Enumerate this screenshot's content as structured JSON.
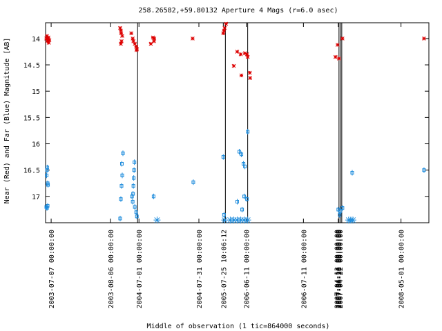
{
  "chart_data": {
    "type": "scatter",
    "title": "258.26582,+59.80132   Aperture 4 Mags (r=6.0 asec)",
    "xlabel": "Middle of observation (1 tic=864000 seconds)",
    "ylabel": "Near (Red) and Far (Blue) Magnitude [AB]",
    "xlim": [
      0,
      55.0
    ],
    "ylim": [
      17.5,
      13.7
    ],
    "y_inverted": true,
    "y_ticks": [
      14,
      14.5,
      15,
      15.5,
      16,
      16.5,
      17
    ],
    "y_tick_labels": [
      "14",
      "14.5",
      "15",
      "15.5",
      "16",
      "16.5",
      "17"
    ],
    "x_ticks": [
      0.8,
      9.3,
      13.4,
      22.0,
      25.5,
      28.8,
      37.0,
      42.0,
      51.0
    ],
    "x_tick_labels": [
      "2003-07-07 00:00:00",
      "2003-08-06 00:00:00",
      "2004-07-01 00:00:00",
      "2004-07-31 00:00:00",
      "2005-07-25 10:06:12",
      "2006-06-11 00:00:00",
      "2006-07-11 00:00:00",
      "2007-04-20 00:00:00",
      "2008-05-01 00:00:00"
    ],
    "x_tick_overlap_labels": [
      "2007-04-13 00:00:00",
      "2007-04-16 00:00:00",
      "2007-04-18 00:00:00",
      "2007-04-22 00:00:00"
    ],
    "vlines": [
      13.2,
      25.8,
      29.0,
      42.1,
      42.3,
      42.5
    ],
    "grid": false,
    "colors": {
      "near": "#dd0000",
      "far": "#1e8cdc",
      "frame": "#000000"
    },
    "series": [
      {
        "name": "Near (Red)",
        "points": [
          [
            0.1,
            14.0
          ],
          [
            0.2,
            13.95
          ],
          [
            0.25,
            14.05
          ],
          [
            0.3,
            14.0
          ],
          [
            0.35,
            14.02
          ],
          [
            0.4,
            13.98
          ],
          [
            0.45,
            14.08
          ],
          [
            0.55,
            14.03
          ],
          [
            10.7,
            13.8
          ],
          [
            10.8,
            13.85
          ],
          [
            10.85,
            13.9
          ],
          [
            11.0,
            13.95
          ],
          [
            10.9,
            14.05
          ],
          [
            10.8,
            14.1
          ],
          [
            12.3,
            13.9
          ],
          [
            12.5,
            14.0
          ],
          [
            12.6,
            14.05
          ],
          [
            12.8,
            14.1
          ],
          [
            13.0,
            14.15
          ],
          [
            13.1,
            14.2
          ],
          [
            13.05,
            14.22
          ],
          [
            15.1,
            14.1
          ],
          [
            15.4,
            13.98
          ],
          [
            15.6,
            14.0
          ],
          [
            15.55,
            14.05
          ],
          [
            21.1,
            14.0
          ],
          [
            25.5,
            13.9
          ],
          [
            25.6,
            13.85
          ],
          [
            25.7,
            13.8
          ],
          [
            25.9,
            13.72
          ],
          [
            27.0,
            14.52
          ],
          [
            27.5,
            14.25
          ],
          [
            28.0,
            14.3
          ],
          [
            28.1,
            14.7
          ],
          [
            28.6,
            14.28
          ],
          [
            28.9,
            14.3
          ],
          [
            29.0,
            14.35
          ],
          [
            29.3,
            14.65
          ],
          [
            29.35,
            14.75
          ],
          [
            41.6,
            14.35
          ],
          [
            41.9,
            14.12
          ],
          [
            42.1,
            14.38
          ],
          [
            42.6,
            14.0
          ],
          [
            54.3,
            14.0
          ]
        ]
      },
      {
        "name": "Far (Blue)",
        "points": [
          [
            0.2,
            16.5
          ],
          [
            0.25,
            16.45
          ],
          [
            0.3,
            16.75
          ],
          [
            0.35,
            16.78
          ],
          [
            0.15,
            16.6
          ],
          [
            0.1,
            17.2
          ],
          [
            0.2,
            17.22
          ],
          [
            0.3,
            17.18
          ],
          [
            10.7,
            17.42
          ],
          [
            10.8,
            17.05
          ],
          [
            10.9,
            16.8
          ],
          [
            11.0,
            16.6
          ],
          [
            10.95,
            16.38
          ],
          [
            11.1,
            16.18
          ],
          [
            12.4,
            17.0
          ],
          [
            12.5,
            17.1
          ],
          [
            12.55,
            16.95
          ],
          [
            12.6,
            16.8
          ],
          [
            12.65,
            16.65
          ],
          [
            12.7,
            16.5
          ],
          [
            12.75,
            16.35
          ],
          [
            12.8,
            17.2
          ],
          [
            13.0,
            17.3
          ],
          [
            13.1,
            17.38
          ],
          [
            15.5,
            17.0
          ],
          [
            21.2,
            16.73
          ],
          [
            25.5,
            16.25
          ],
          [
            25.6,
            17.35
          ],
          [
            27.5,
            17.1
          ],
          [
            27.8,
            16.15
          ],
          [
            28.1,
            16.2
          ],
          [
            28.4,
            16.38
          ],
          [
            28.6,
            16.43
          ],
          [
            28.2,
            17.25
          ],
          [
            28.5,
            17.0
          ],
          [
            28.9,
            17.05
          ],
          [
            29.0,
            15.77
          ],
          [
            42.0,
            17.25
          ],
          [
            42.3,
            17.28
          ],
          [
            42.6,
            17.22
          ],
          [
            42.2,
            17.35
          ],
          [
            44.0,
            16.55
          ],
          [
            54.3,
            16.5
          ]
        ]
      },
      {
        "name": "Limits",
        "points": [
          [
            16.0,
            17.45
          ],
          [
            25.7,
            17.45
          ],
          [
            26.5,
            17.45
          ],
          [
            27.0,
            17.45
          ],
          [
            27.5,
            17.45
          ],
          [
            28.0,
            17.45
          ],
          [
            28.5,
            17.45
          ],
          [
            29.0,
            17.45
          ],
          [
            43.5,
            17.45
          ],
          [
            43.8,
            17.45
          ],
          [
            44.1,
            17.45
          ]
        ]
      }
    ]
  }
}
